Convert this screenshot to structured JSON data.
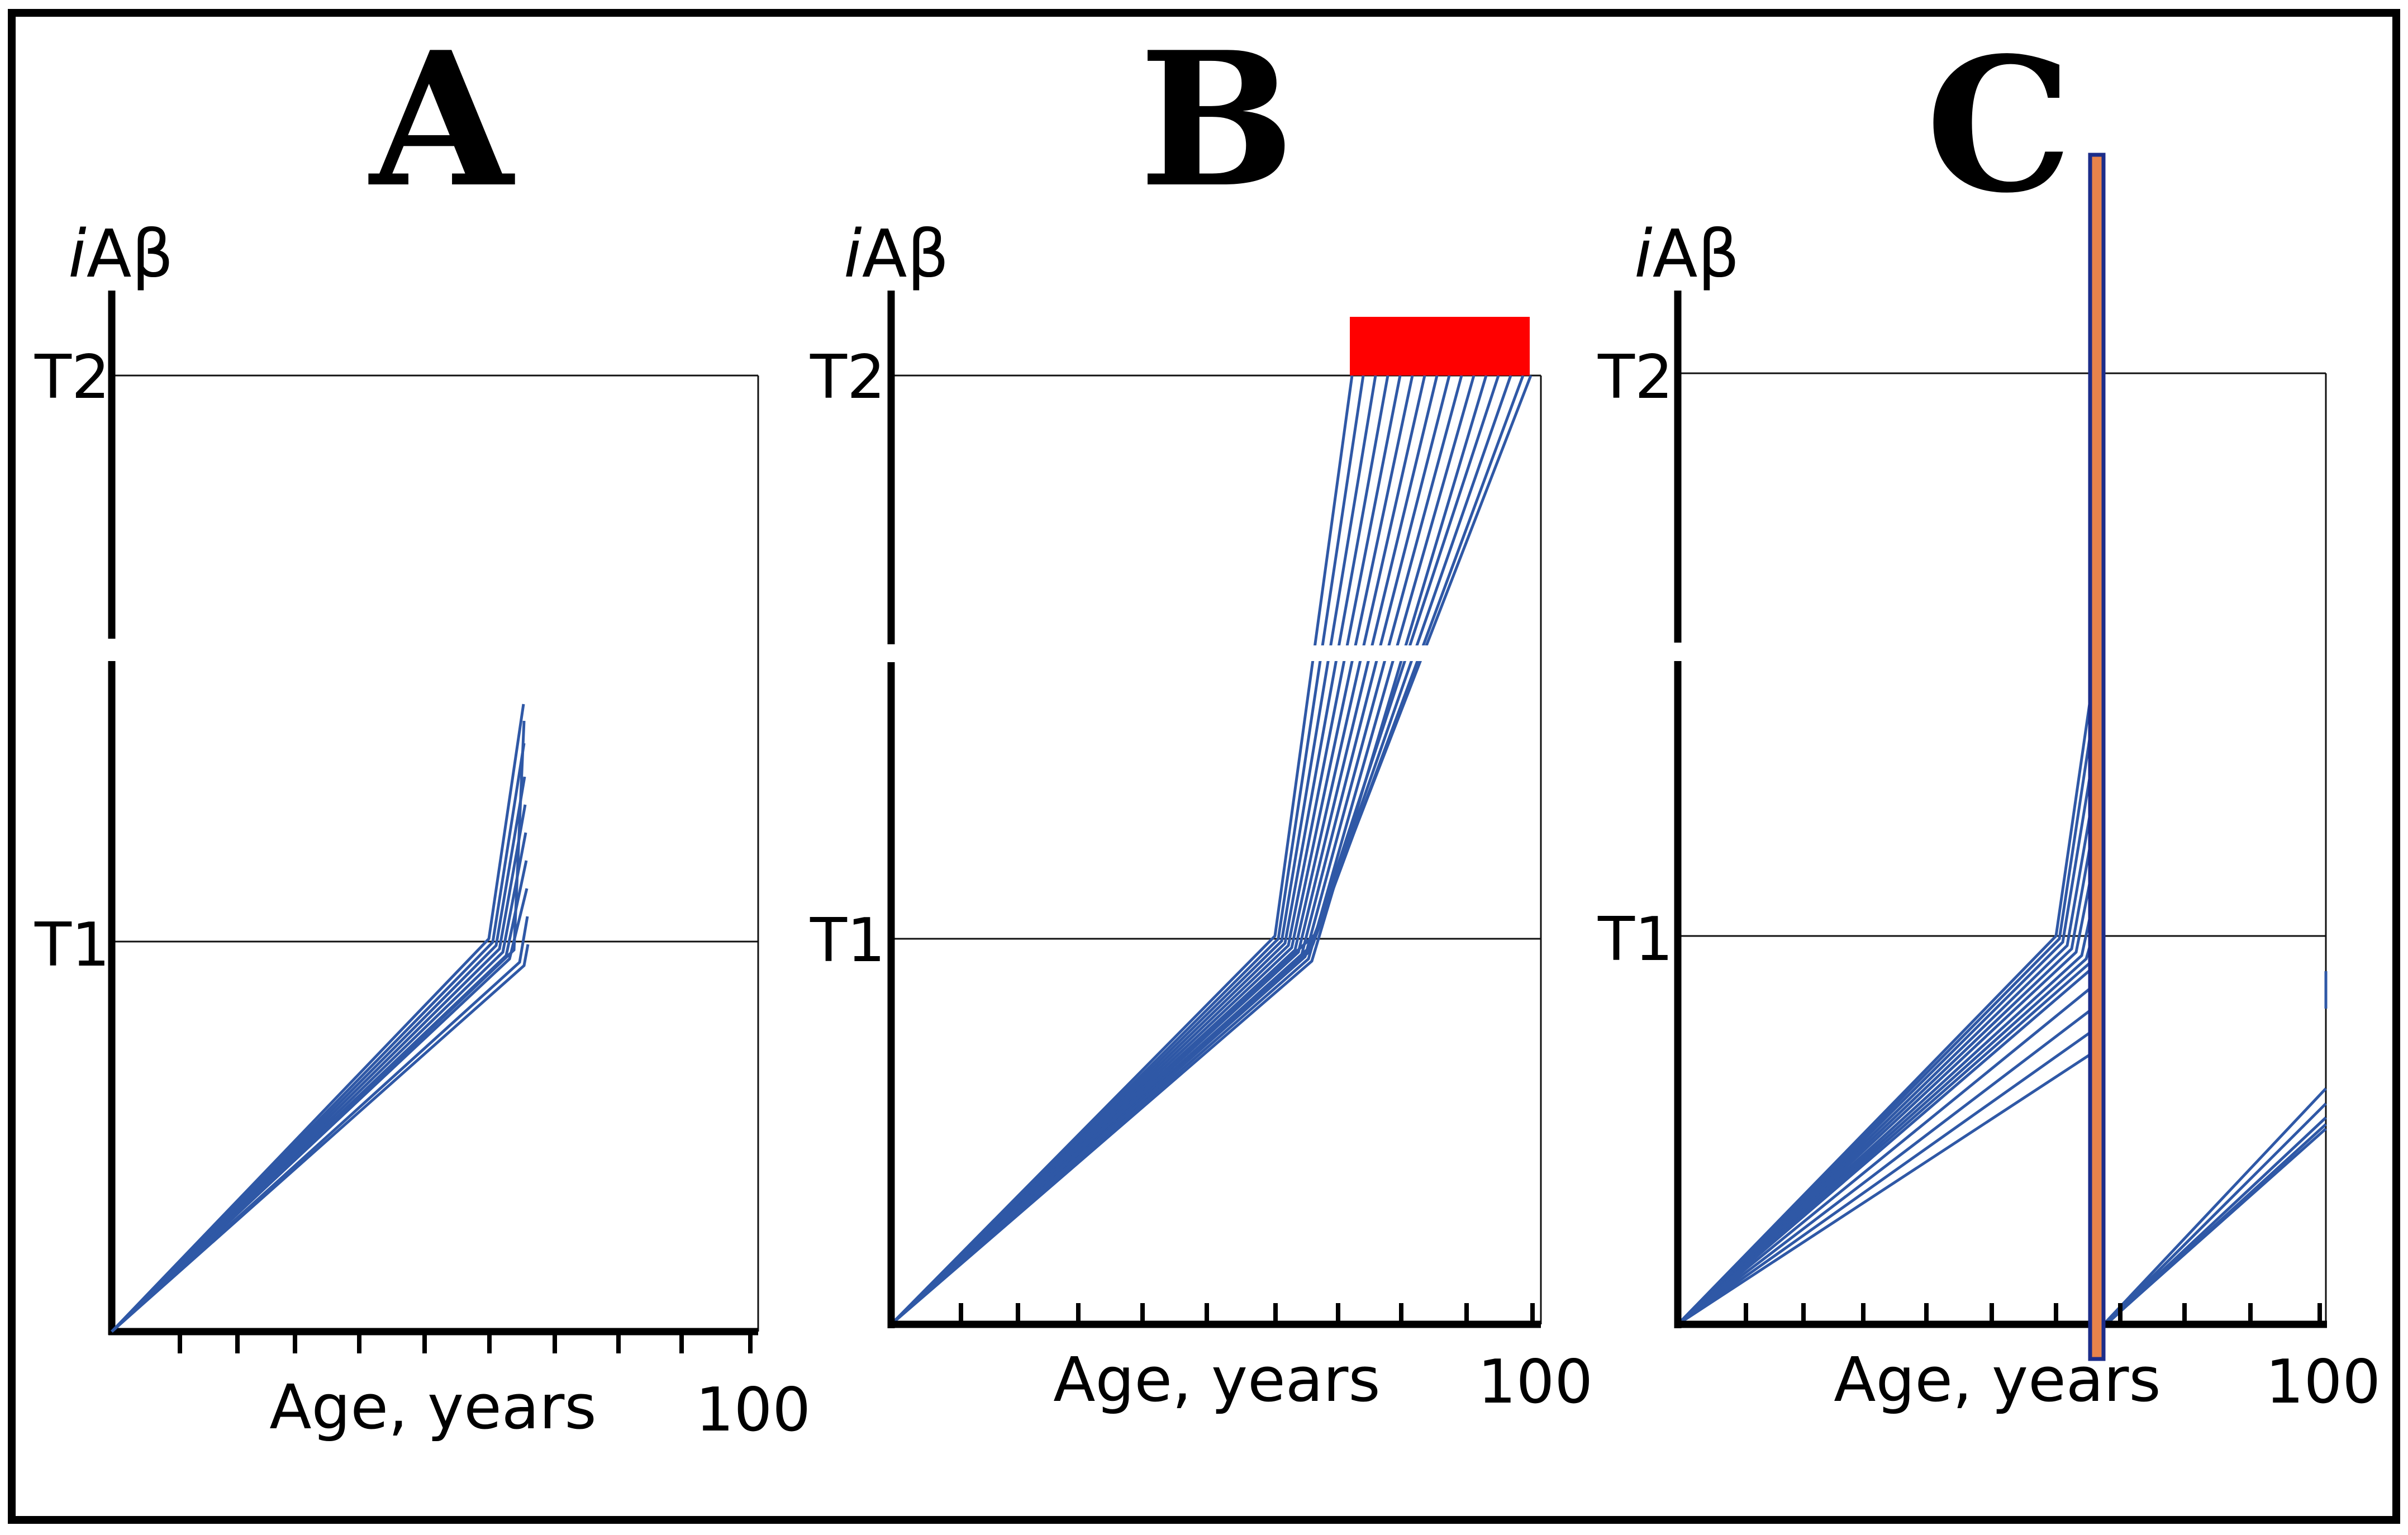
{
  "figure": {
    "y_axis_title_prefix": "i",
    "y_axis_title_suffix": "Aβ",
    "x_axis_label": "Age, years",
    "x_axis_end_tick": "100",
    "thresholds": [
      "T1",
      "T2"
    ]
  },
  "panels": [
    {
      "letter": "A"
    },
    {
      "letter": "B"
    },
    {
      "letter": "C"
    }
  ],
  "colors": {
    "trajectory": "#2f58a6",
    "t2_crossing_marker": "#ff0000",
    "intervention_bar_fill": "#e8834a",
    "intervention_bar_border": "#1c2d8a"
  }
}
